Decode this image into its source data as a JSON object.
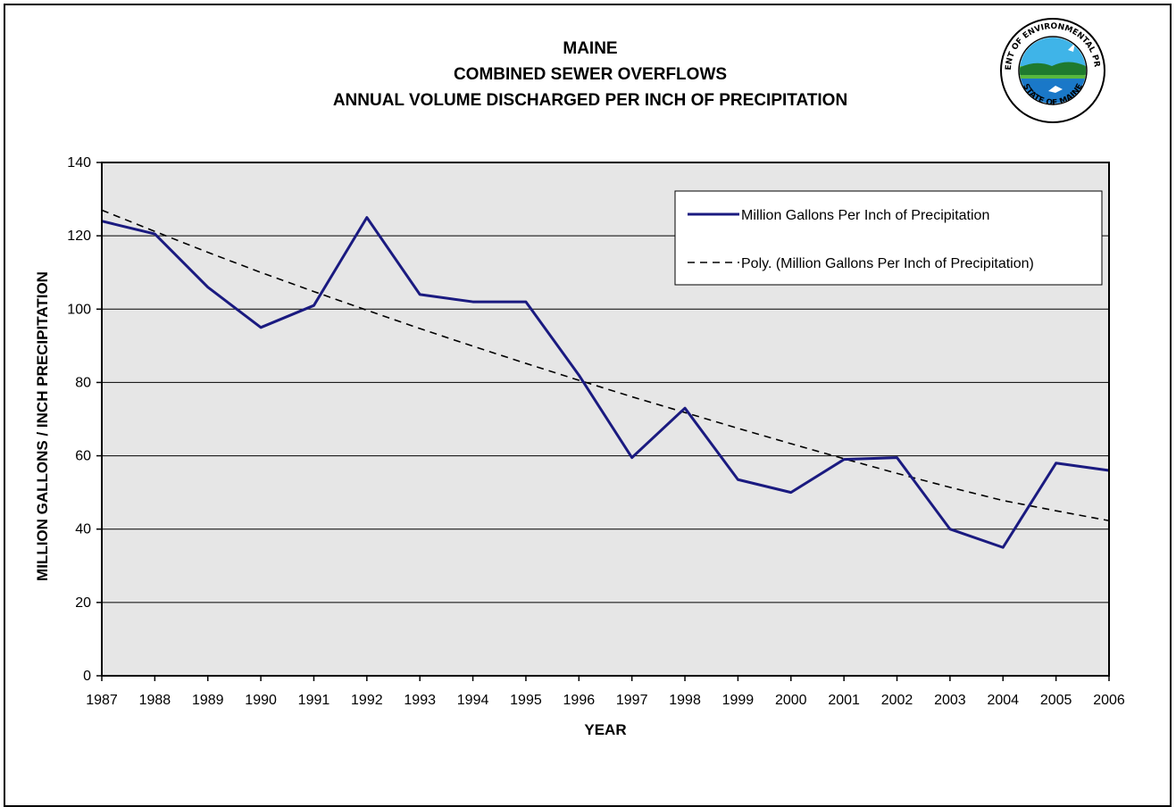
{
  "chart_data": {
    "type": "line",
    "title": [
      "MAINE",
      "COMBINED SEWER OVERFLOWS",
      "ANNUAL VOLUME DISCHARGED PER INCH OF PRECIPITATION"
    ],
    "xlabel": "YEAR",
    "ylabel": "MILLION GALLONS / INCH PRECIPITATION",
    "ylim": [
      0,
      140
    ],
    "yticks": [
      0,
      20,
      40,
      60,
      80,
      100,
      120,
      140
    ],
    "x": [
      "1987",
      "1988",
      "1989",
      "1990",
      "1991",
      "1992",
      "1993",
      "1994",
      "1995",
      "1996",
      "1997",
      "1998",
      "1999",
      "2000",
      "2001",
      "2002",
      "2003",
      "2004",
      "2005",
      "2006"
    ],
    "series": [
      {
        "name": "Million Gallons Per Inch of Precipitation",
        "style": "solid",
        "color": "#1a1a80",
        "values": [
          124,
          120.5,
          106,
          95,
          101,
          125,
          104,
          102,
          102,
          82,
          59.5,
          73,
          53.5,
          50,
          59,
          59.5,
          40,
          35,
          58,
          56
        ]
      },
      {
        "name": "Poly. (Million Gallons Per Inch of Precipitation)",
        "style": "dashed",
        "color": "#000000",
        "values": [
          127,
          121.2,
          115.5,
          110,
          104.8,
          99.7,
          94.7,
          89.9,
          85.2,
          80.6,
          76.1,
          71.8,
          67.5,
          63.3,
          59.2,
          55.2,
          51.4,
          47.8,
          45,
          42.3
        ]
      }
    ],
    "legend_position": "top-right",
    "grid": true,
    "plot_background": "#e6e6e6"
  },
  "seal": {
    "top_text": "DEPARTMENT OF ENVIRONMENTAL PROTECTION",
    "bottom_text": "STATE OF MAINE"
  }
}
